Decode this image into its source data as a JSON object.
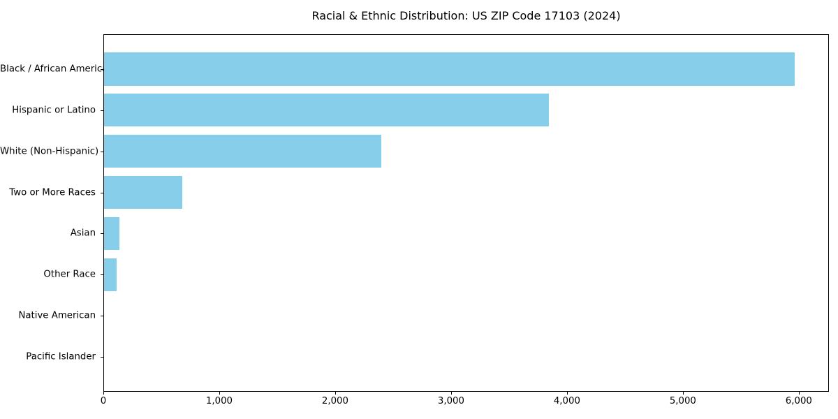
{
  "chart_data": {
    "type": "bar",
    "orientation": "horizontal",
    "title": "Racial & Ethnic Distribution: US ZIP Code 17103 (2024)",
    "categories": [
      "Black / African American",
      "Hispanic or Latino",
      "White (Non-Hispanic)",
      "Two or More Races",
      "Asian",
      "Other Race",
      "Native American",
      "Pacific Islander"
    ],
    "values": [
      5960,
      3840,
      2390,
      675,
      135,
      110,
      0,
      0
    ],
    "xlabel": "",
    "ylabel": "",
    "xlim": [
      0,
      6260
    ],
    "xticks": [
      0,
      1000,
      2000,
      3000,
      4000,
      5000,
      6000
    ],
    "xtick_labels": [
      "0",
      "1,000",
      "2,000",
      "3,000",
      "4,000",
      "5,000",
      "6,000"
    ],
    "bar_color": "#87CEEB",
    "axis_color": "#000000",
    "text_color": "#000000",
    "background_color": "#ffffff",
    "grid": false,
    "legend_position": "none",
    "bar_relative_height": 0.8
  }
}
